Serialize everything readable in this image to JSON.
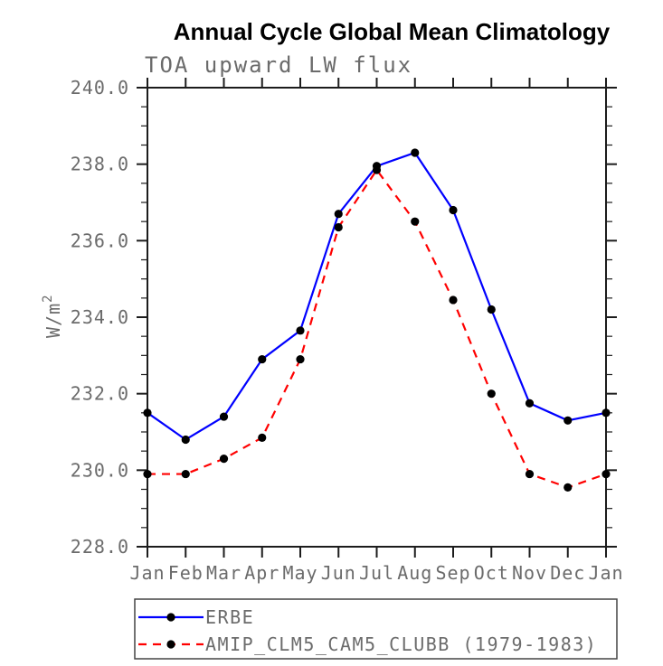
{
  "chart_data": {
    "type": "line",
    "title": "Annual Cycle Global Mean Climatology",
    "subtitle": "TOA upward LW flux",
    "ylabel": {
      "base": "W/m",
      "sup": "2"
    },
    "categories": [
      "Jan",
      "Feb",
      "Mar",
      "Apr",
      "May",
      "Jun",
      "Jul",
      "Aug",
      "Sep",
      "Oct",
      "Nov",
      "Dec",
      "Jan"
    ],
    "ylim": [
      228.0,
      240.0
    ],
    "ytick_labels": [
      "240.0",
      "238.0",
      "236.0",
      "234.0",
      "232.0",
      "230.0",
      "228.0"
    ],
    "ytick_major_step": 2.0,
    "ytick_minor_step": 0.5,
    "grid": "off",
    "legend_position": "bottom",
    "marker": "filled-circle",
    "marker_color": "#000000",
    "series": [
      {
        "name": "ERBE",
        "color": "#0000ff",
        "line_style": "solid",
        "values": [
          231.5,
          230.8,
          231.4,
          232.9,
          233.65,
          236.7,
          237.95,
          238.3,
          236.8,
          234.2,
          231.75,
          231.3,
          231.5
        ]
      },
      {
        "name": "AMIP_CLM5_CAM5_CLUBB (1979-1983)",
        "color": "#ff0000",
        "line_style": "dashed",
        "values": [
          229.9,
          229.9,
          230.3,
          230.85,
          232.9,
          236.35,
          237.85,
          236.5,
          234.45,
          232.0,
          229.9,
          229.55,
          229.9
        ]
      }
    ]
  }
}
